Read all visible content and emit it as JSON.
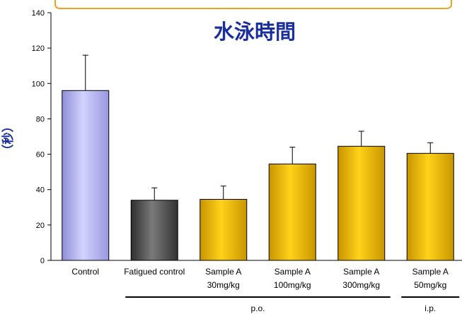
{
  "chart_data": {
    "type": "bar",
    "title": "水泳時間",
    "ylabel": "（秒）",
    "xlabel": "",
    "ylim": [
      0,
      140
    ],
    "y_ticks": [
      0,
      20,
      40,
      60,
      80,
      100,
      120,
      140
    ],
    "grid": false,
    "categories": [
      {
        "line1": "Control",
        "line2": ""
      },
      {
        "line1": "Fatigued control",
        "line2": ""
      },
      {
        "line1": "Sample A",
        "line2": "30mg/kg"
      },
      {
        "line1": "Sample A",
        "line2": "100mg/kg"
      },
      {
        "line1": "Sample A",
        "line2": "300mg/kg"
      },
      {
        "line1": "Sample A",
        "line2": "50mg/kg"
      }
    ],
    "values": [
      96,
      34,
      34.5,
      54.5,
      64.5,
      60.5
    ],
    "error": [
      20,
      7,
      7.5,
      9.5,
      8.5,
      6
    ],
    "bar_colors": [
      "#b3b3f0",
      "#555555",
      "#f0c000",
      "#f0c000",
      "#f0c000",
      "#f0c000"
    ],
    "groups": [
      {
        "label": "p.o.",
        "from": 1,
        "to": 4
      },
      {
        "label": "i.p.",
        "from": 5,
        "to": 5
      }
    ],
    "title_color": "#1a2f9c",
    "ylabel_color": "#1a2f9c"
  }
}
